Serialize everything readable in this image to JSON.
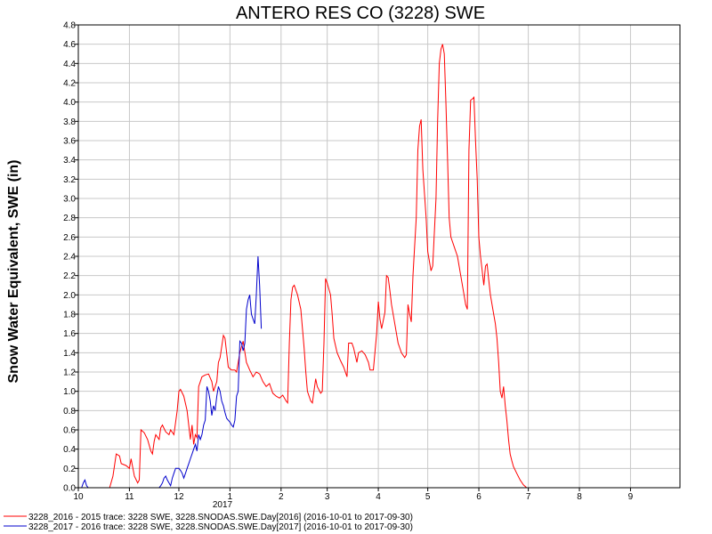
{
  "chart_data": {
    "type": "line",
    "title": "ANTERO RES CO (3228) SWE",
    "ylabel": "Snow Water Equivalent, SWE (in)",
    "xlabel": "",
    "x_ticks": [
      "10",
      "11",
      "12",
      "1",
      "2",
      "3",
      "4",
      "5",
      "6",
      "7",
      "8",
      "9"
    ],
    "x_year_label": "2017",
    "x_domain": [
      "2016-10-01",
      "2017-10-01"
    ],
    "ylim": [
      0.0,
      4.8
    ],
    "y_ticks": [
      "0.0",
      "0.2",
      "0.4",
      "0.6",
      "0.8",
      "1.0",
      "1.2",
      "1.4",
      "1.6",
      "1.8",
      "2.0",
      "2.2",
      "2.4",
      "2.6",
      "2.8",
      "3.0",
      "3.2",
      "3.4",
      "3.6",
      "3.8",
      "4.0",
      "4.2",
      "4.4",
      "4.6",
      "4.8"
    ],
    "grid": true,
    "legend_position": "bottom-left",
    "series": [
      {
        "name": "3228_2016 - 2015 trace: 3228 SWE, 3228.SNODAS.SWE.Day[2016] (2016-10-01 to 2017-09-30)",
        "color": "#ff0000",
        "points": [
          [
            "2016-10-01",
            0
          ],
          [
            "2016-10-20",
            0
          ],
          [
            "2016-10-22",
            0.12
          ],
          [
            "2016-10-24",
            0.35
          ],
          [
            "2016-10-26",
            0.33
          ],
          [
            "2016-10-27",
            0.25
          ],
          [
            "2016-10-30",
            0.23
          ],
          [
            "2016-11-01",
            0.2
          ],
          [
            "2016-11-02",
            0.3
          ],
          [
            "2016-11-04",
            0.12
          ],
          [
            "2016-11-06",
            0.05
          ],
          [
            "2016-11-07",
            0.08
          ],
          [
            "2016-11-08",
            0.6
          ],
          [
            "2016-11-10",
            0.57
          ],
          [
            "2016-11-12",
            0.5
          ],
          [
            "2016-11-14",
            0.38
          ],
          [
            "2016-11-15",
            0.35
          ],
          [
            "2016-11-16",
            0.48
          ],
          [
            "2016-11-17",
            0.55
          ],
          [
            "2016-11-19",
            0.5
          ],
          [
            "2016-11-20",
            0.62
          ],
          [
            "2016-11-21",
            0.65
          ],
          [
            "2016-11-23",
            0.58
          ],
          [
            "2016-11-25",
            0.55
          ],
          [
            "2016-11-26",
            0.6
          ],
          [
            "2016-11-28",
            0.55
          ],
          [
            "2016-11-30",
            0.8
          ],
          [
            "2016-12-01",
            1.0
          ],
          [
            "2016-12-02",
            1.02
          ],
          [
            "2016-12-04",
            0.95
          ],
          [
            "2016-12-06",
            0.8
          ],
          [
            "2016-12-08",
            0.5
          ],
          [
            "2016-12-09",
            0.65
          ],
          [
            "2016-12-10",
            0.45
          ],
          [
            "2016-12-11",
            0.55
          ],
          [
            "2016-12-12",
            0.52
          ],
          [
            "2016-12-13",
            1.05
          ],
          [
            "2016-12-14",
            1.1
          ],
          [
            "2016-12-15",
            1.15
          ],
          [
            "2016-12-17",
            1.17
          ],
          [
            "2016-12-19",
            1.18
          ],
          [
            "2016-12-21",
            1.1
          ],
          [
            "2016-12-22",
            1.0
          ],
          [
            "2016-12-24",
            1.1
          ],
          [
            "2016-12-25",
            1.3
          ],
          [
            "2016-12-26",
            1.35
          ],
          [
            "2016-12-28",
            1.58
          ],
          [
            "2016-12-29",
            1.55
          ],
          [
            "2016-12-31",
            1.25
          ],
          [
            "2017-01-02",
            1.22
          ],
          [
            "2017-01-04",
            1.22
          ],
          [
            "2017-01-05",
            1.2
          ],
          [
            "2017-01-07",
            1.4
          ],
          [
            "2017-01-09",
            1.52
          ],
          [
            "2017-01-11",
            1.3
          ],
          [
            "2017-01-13",
            1.22
          ],
          [
            "2017-01-15",
            1.15
          ],
          [
            "2017-01-17",
            1.2
          ],
          [
            "2017-01-19",
            1.18
          ],
          [
            "2017-01-21",
            1.1
          ],
          [
            "2017-01-23",
            1.05
          ],
          [
            "2017-01-25",
            1.08
          ],
          [
            "2017-01-27",
            0.98
          ],
          [
            "2017-01-29",
            0.95
          ],
          [
            "2017-01-31",
            0.93
          ],
          [
            "2017-02-02",
            0.96
          ],
          [
            "2017-02-04",
            0.9
          ],
          [
            "2017-02-05",
            0.88
          ],
          [
            "2017-02-06",
            1.5
          ],
          [
            "2017-02-07",
            1.95
          ],
          [
            "2017-02-08",
            2.08
          ],
          [
            "2017-02-09",
            2.1
          ],
          [
            "2017-02-11",
            2.0
          ],
          [
            "2017-02-13",
            1.85
          ],
          [
            "2017-02-15",
            1.45
          ],
          [
            "2017-02-16",
            1.2
          ],
          [
            "2017-02-17",
            1.0
          ],
          [
            "2017-02-19",
            0.9
          ],
          [
            "2017-02-20",
            0.88
          ],
          [
            "2017-02-22",
            1.13
          ],
          [
            "2017-02-23",
            1.05
          ],
          [
            "2017-02-25",
            0.98
          ],
          [
            "2017-02-26",
            1.0
          ],
          [
            "2017-02-27",
            1.5
          ],
          [
            "2017-02-28",
            2.17
          ],
          [
            "2017-03-01",
            2.12
          ],
          [
            "2017-03-03",
            2.0
          ],
          [
            "2017-03-04",
            1.8
          ],
          [
            "2017-03-05",
            1.55
          ],
          [
            "2017-03-07",
            1.4
          ],
          [
            "2017-03-09",
            1.32
          ],
          [
            "2017-03-11",
            1.25
          ],
          [
            "2017-03-13",
            1.15
          ],
          [
            "2017-03-14",
            1.5
          ],
          [
            "2017-03-16",
            1.5
          ],
          [
            "2017-03-17",
            1.45
          ],
          [
            "2017-03-19",
            1.3
          ],
          [
            "2017-03-20",
            1.4
          ],
          [
            "2017-03-22",
            1.42
          ],
          [
            "2017-03-24",
            1.38
          ],
          [
            "2017-03-26",
            1.3
          ],
          [
            "2017-03-27",
            1.22
          ],
          [
            "2017-03-29",
            1.22
          ],
          [
            "2017-03-31",
            1.6
          ],
          [
            "2017-04-01",
            1.93
          ],
          [
            "2017-04-02",
            1.75
          ],
          [
            "2017-04-03",
            1.65
          ],
          [
            "2017-04-05",
            1.82
          ],
          [
            "2017-04-06",
            2.2
          ],
          [
            "2017-04-07",
            2.18
          ],
          [
            "2017-04-08",
            2.05
          ],
          [
            "2017-04-09",
            1.9
          ],
          [
            "2017-04-11",
            1.7
          ],
          [
            "2017-04-13",
            1.5
          ],
          [
            "2017-04-15",
            1.4
          ],
          [
            "2017-04-17",
            1.35
          ],
          [
            "2017-04-18",
            1.38
          ],
          [
            "2017-04-19",
            1.9
          ],
          [
            "2017-04-20",
            1.8
          ],
          [
            "2017-04-21",
            1.72
          ],
          [
            "2017-04-22",
            2.2
          ],
          [
            "2017-04-24",
            2.8
          ],
          [
            "2017-04-25",
            3.5
          ],
          [
            "2017-04-26",
            3.75
          ],
          [
            "2017-04-27",
            3.82
          ],
          [
            "2017-04-28",
            3.3
          ],
          [
            "2017-04-30",
            2.8
          ],
          [
            "2017-05-01",
            2.45
          ],
          [
            "2017-05-03",
            2.25
          ],
          [
            "2017-05-04",
            2.3
          ],
          [
            "2017-05-06",
            3.0
          ],
          [
            "2017-05-07",
            3.8
          ],
          [
            "2017-05-08",
            4.4
          ],
          [
            "2017-05-09",
            4.55
          ],
          [
            "2017-05-10",
            4.6
          ],
          [
            "2017-05-11",
            4.5
          ],
          [
            "2017-05-12",
            4.0
          ],
          [
            "2017-05-13",
            3.4
          ],
          [
            "2017-05-14",
            2.8
          ],
          [
            "2017-05-15",
            2.6
          ],
          [
            "2017-05-17",
            2.5
          ],
          [
            "2017-05-19",
            2.4
          ],
          [
            "2017-05-21",
            2.2
          ],
          [
            "2017-05-23",
            2.0
          ],
          [
            "2017-05-24",
            1.9
          ],
          [
            "2017-05-25",
            1.85
          ],
          [
            "2017-05-26",
            3.5
          ],
          [
            "2017-05-27",
            4.02
          ],
          [
            "2017-05-28",
            4.03
          ],
          [
            "2017-05-29",
            4.05
          ],
          [
            "2017-05-30",
            3.6
          ],
          [
            "2017-05-31",
            3.2
          ],
          [
            "2017-06-01",
            2.6
          ],
          [
            "2017-06-02",
            2.4
          ],
          [
            "2017-06-03",
            2.25
          ],
          [
            "2017-06-04",
            2.1
          ],
          [
            "2017-06-05",
            2.3
          ],
          [
            "2017-06-06",
            2.32
          ],
          [
            "2017-06-07",
            2.15
          ],
          [
            "2017-06-08",
            2.0
          ],
          [
            "2017-06-10",
            1.8
          ],
          [
            "2017-06-11",
            1.7
          ],
          [
            "2017-06-12",
            1.55
          ],
          [
            "2017-06-13",
            1.3
          ],
          [
            "2017-06-14",
            1.0
          ],
          [
            "2017-06-15",
            0.93
          ],
          [
            "2017-06-16",
            1.05
          ],
          [
            "2017-06-17",
            0.85
          ],
          [
            "2017-06-18",
            0.7
          ],
          [
            "2017-06-19",
            0.5
          ],
          [
            "2017-06-20",
            0.35
          ],
          [
            "2017-06-21",
            0.28
          ],
          [
            "2017-06-22",
            0.22
          ],
          [
            "2017-06-24",
            0.15
          ],
          [
            "2017-06-26",
            0.08
          ],
          [
            "2017-06-28",
            0.03
          ],
          [
            "2017-06-30",
            0
          ],
          [
            "2017-09-30",
            0
          ]
        ]
      },
      {
        "name": "3228_2017 - 2016 trace: 3228 SWE, 3228.SNODAS.SWE.Day[2017] (2016-10-01 to 2017-09-30)",
        "color": "#0000cc",
        "points": [
          [
            "2016-10-01",
            0
          ],
          [
            "2016-10-03",
            0
          ],
          [
            "2016-10-04",
            0.05
          ],
          [
            "2016-10-05",
            0.08
          ],
          [
            "2016-10-06",
            0.02
          ],
          [
            "2016-10-07",
            0
          ],
          [
            "2016-11-19",
            0
          ],
          [
            "2016-11-20",
            0.02
          ],
          [
            "2016-11-21",
            0.05
          ],
          [
            "2016-11-22",
            0.1
          ],
          [
            "2016-11-23",
            0.12
          ],
          [
            "2016-11-24",
            0.08
          ],
          [
            "2016-11-25",
            0.05
          ],
          [
            "2016-11-26",
            0.02
          ],
          [
            "2016-11-27",
            0.1
          ],
          [
            "2016-11-28",
            0.15
          ],
          [
            "2016-11-29",
            0.2
          ],
          [
            "2016-11-30",
            0.2
          ],
          [
            "2016-12-01",
            0.2
          ],
          [
            "2016-12-02",
            0.18
          ],
          [
            "2016-12-03",
            0.15
          ],
          [
            "2016-12-04",
            0.1
          ],
          [
            "2016-12-05",
            0.15
          ],
          [
            "2016-12-06",
            0.2
          ],
          [
            "2016-12-07",
            0.25
          ],
          [
            "2016-12-08",
            0.3
          ],
          [
            "2016-12-09",
            0.35
          ],
          [
            "2016-12-10",
            0.4
          ],
          [
            "2016-12-11",
            0.45
          ],
          [
            "2016-12-12",
            0.38
          ],
          [
            "2016-12-13",
            0.55
          ],
          [
            "2016-12-14",
            0.5
          ],
          [
            "2016-12-15",
            0.55
          ],
          [
            "2016-12-16",
            0.65
          ],
          [
            "2016-12-17",
            0.7
          ],
          [
            "2016-12-18",
            1.05
          ],
          [
            "2016-12-19",
            1.0
          ],
          [
            "2016-12-20",
            0.9
          ],
          [
            "2016-12-21",
            0.75
          ],
          [
            "2016-12-22",
            0.85
          ],
          [
            "2016-12-23",
            0.8
          ],
          [
            "2016-12-24",
            0.95
          ],
          [
            "2016-12-25",
            1.05
          ],
          [
            "2016-12-26",
            1.0
          ],
          [
            "2016-12-27",
            0.9
          ],
          [
            "2016-12-28",
            0.85
          ],
          [
            "2016-12-29",
            0.78
          ],
          [
            "2016-12-30",
            0.72
          ],
          [
            "2016-12-31",
            0.7
          ],
          [
            "2017-01-01",
            0.68
          ],
          [
            "2017-01-02",
            0.65
          ],
          [
            "2017-01-03",
            0.63
          ],
          [
            "2017-01-04",
            0.7
          ],
          [
            "2017-01-05",
            0.95
          ],
          [
            "2017-01-06",
            1.0
          ],
          [
            "2017-01-07",
            1.52
          ],
          [
            "2017-01-08",
            1.5
          ],
          [
            "2017-01-09",
            1.42
          ],
          [
            "2017-01-10",
            1.5
          ],
          [
            "2017-01-11",
            1.85
          ],
          [
            "2017-01-12",
            1.95
          ],
          [
            "2017-01-13",
            2.0
          ],
          [
            "2017-01-14",
            1.8
          ],
          [
            "2017-01-15",
            1.75
          ],
          [
            "2017-01-16",
            1.7
          ],
          [
            "2017-01-17",
            2.0
          ],
          [
            "2017-01-18",
            2.4
          ],
          [
            "2017-01-19",
            2.1
          ],
          [
            "2017-01-20",
            1.65
          ]
        ]
      }
    ]
  }
}
